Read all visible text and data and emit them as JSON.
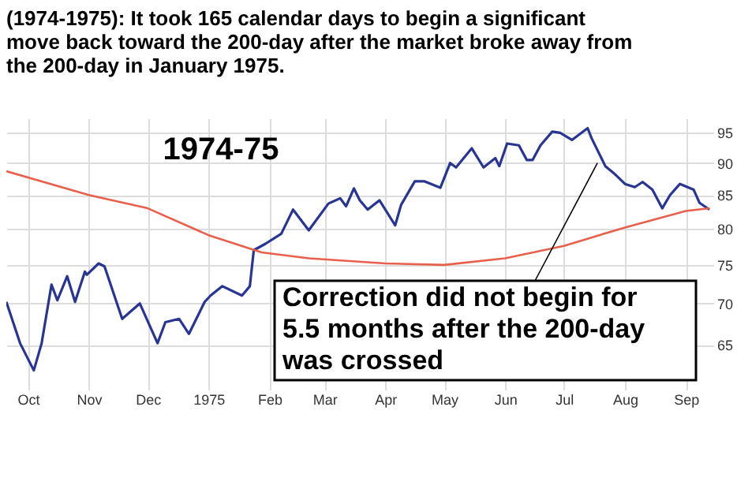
{
  "chart_data": {
    "type": "line",
    "title": "(1974-1975):  It took 165 calendar days to begin a significant move back toward the 200-day after the market broke away from the 200-day in January 1975.",
    "series": [
      {
        "color": "#283593",
        "x": [
          "1974-09-20",
          "1974-09-27",
          "1974-10-04",
          "1974-10-08",
          "1974-10-13",
          "1974-10-16",
          "1974-10-21",
          "1974-10-25",
          "1974-10-30",
          "1974-10-31",
          "1974-11-06",
          "1974-11-09",
          "1974-11-18",
          "1974-11-27",
          "1974-12-06",
          "1974-12-10",
          "1974-12-17",
          "1974-12-22",
          "1974-12-30",
          "1975-01-02",
          "1975-01-08",
          "1975-01-18",
          "1975-01-22",
          "1975-01-24",
          "1975-01-30",
          "1975-02-07",
          "1975-02-13",
          "1975-02-21",
          "1975-03-03",
          "1975-03-09",
          "1975-03-12",
          "1975-03-16",
          "1975-03-19",
          "1975-03-23",
          "1975-03-29",
          "1975-04-06",
          "1975-04-09",
          "1975-04-16",
          "1975-04-21",
          "1975-04-29",
          "1975-05-04",
          "1975-05-07",
          "1975-05-15",
          "1975-05-21",
          "1975-05-27",
          "1975-05-29",
          "1975-06-02",
          "1975-06-08",
          "1975-06-12",
          "1975-06-15",
          "1975-06-19",
          "1975-06-25",
          "1975-06-29",
          "1975-07-05",
          "1975-07-13",
          "1975-07-15",
          "1975-07-22",
          "1975-07-27",
          "1975-08-01",
          "1975-08-06",
          "1975-08-10",
          "1975-08-15",
          "1975-08-20",
          "1975-08-24",
          "1975-08-29",
          "1975-09-05",
          "1975-09-08",
          "1975-09-13"
        ],
        "values": [
          70.2,
          65.2,
          62.1,
          65.2,
          72.4,
          70.4,
          73.5,
          70.2,
          74.1,
          73.7,
          75.2,
          74.8,
          68.1,
          70,
          65.2,
          67.7,
          68.1,
          66.3,
          70.2,
          71,
          72.2,
          71,
          72.2,
          77,
          77.9,
          79.3,
          82.8,
          79.8,
          83.7,
          84.5,
          83.3,
          86,
          84.2,
          82.8,
          84.2,
          80.5,
          83.5,
          87.1,
          87.1,
          86.1,
          90,
          89.3,
          92.4,
          89.3,
          90.8,
          89.5,
          93.2,
          92.9,
          90.5,
          90.5,
          92.9,
          95.2,
          95,
          93.8,
          95.8,
          94.1,
          89.5,
          88.2,
          86.7,
          86.2,
          87,
          85.8,
          83,
          85,
          86.7,
          85.8,
          83.8,
          82.8
        ]
      },
      {
        "color": "#e8604c",
        "x": [
          "1974-09-20",
          "1974-11-01",
          "1974-12-01",
          "1975-01-01",
          "1975-01-28",
          "1975-02-21",
          "1975-04-01",
          "1975-05-01",
          "1975-06-01",
          "1975-07-01",
          "1975-08-01",
          "1975-09-01",
          "1975-09-13"
        ],
        "values": [
          88.7,
          85,
          83,
          79.1,
          76.7,
          75.9,
          75.2,
          75,
          75.9,
          77.6,
          80.2,
          82.6,
          83
        ]
      }
    ],
    "xlim": [
      "1974-09-20",
      "1975-09-15"
    ],
    "xticks": [
      {
        "value": "1974-10-01",
        "label": "Oct"
      },
      {
        "value": "1974-11-01",
        "label": "Nov"
      },
      {
        "value": "1974-12-01",
        "label": "Dec"
      },
      {
        "value": "1975-01-01",
        "label": "1975"
      },
      {
        "value": "1975-02-01",
        "label": "Feb"
      },
      {
        "value": "1975-03-01",
        "label": "Mar"
      },
      {
        "value": "1975-04-01",
        "label": "Apr"
      },
      {
        "value": "1975-05-01",
        "label": "May"
      },
      {
        "value": "1975-06-01",
        "label": "Jun"
      },
      {
        "value": "1975-07-01",
        "label": "Jul"
      },
      {
        "value": "1975-08-01",
        "label": "Aug"
      },
      {
        "value": "1975-09-01",
        "label": "Sep"
      }
    ],
    "ylim": [
      60,
      97.5
    ],
    "yticks": [
      65,
      70,
      75,
      80,
      85,
      90,
      95
    ],
    "log": true,
    "grid": true,
    "marker": "none",
    "line_style": "solid",
    "annotations": [
      "1974-75",
      {
        "text": "Correction did not begin for\n5.5 months after the 200-day\nwas crossed",
        "x": "1975-07-18",
        "y": 90
      }
    ]
  }
}
